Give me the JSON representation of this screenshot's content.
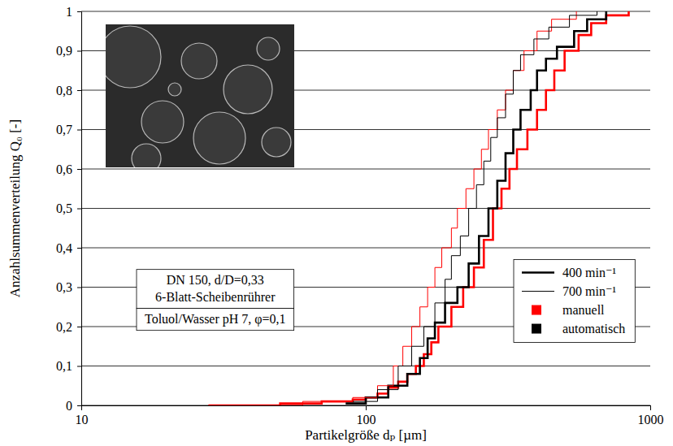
{
  "chart_data": {
    "type": "step",
    "x_label": "Partikelgröße dₚ [µm]",
    "y_label": "Anzahlsummenverteilung Q₀ [-]",
    "log": "x",
    "grid": true,
    "xlim": [
      10,
      1000
    ],
    "xticks": [
      10,
      100,
      1000
    ],
    "ylim": [
      0,
      1
    ],
    "yticks": [
      0,
      {
        "value": 0.1,
        "label": "0,1"
      },
      {
        "value": 0.2,
        "label": "0,2"
      },
      {
        "value": 0.3,
        "label": "0,3"
      },
      {
        "value": 0.4,
        "label": "0,4"
      },
      {
        "value": 0.5,
        "label": "0,5"
      },
      {
        "value": 0.6,
        "label": "0,6"
      },
      {
        "value": 0.7,
        "label": "0,7"
      },
      {
        "value": 0.8,
        "label": "0,8"
      },
      {
        "value": 0.9,
        "label": "0,9"
      },
      1
    ],
    "annotations": [
      "DN 150, d/D=0,33",
      "6-Blatt-Scheibenrührer",
      "Toluol/Wasser pH 7, φ=0,1"
    ],
    "legend": "right",
    "legend_items": [
      {
        "label": "400 min⁻¹",
        "line_style": "thick"
      },
      {
        "label": "700 min⁻¹",
        "line_style": "thin"
      },
      {
        "label": "manuell",
        "color": "#ff0000"
      },
      {
        "label": "automatisch",
        "color": "#000000"
      }
    ],
    "series": [
      {
        "color": "#ff0000",
        "line_style": "thick",
        "x": [
          28,
          50,
          70,
          90,
          100,
          110,
          120,
          130,
          140,
          150,
          160,
          170,
          180,
          200,
          220,
          240,
          260,
          280,
          300,
          320,
          340,
          370,
          400,
          430,
          460,
          500,
          560,
          620,
          700,
          840
        ],
        "values": [
          0,
          0.005,
          0.01,
          0.015,
          0.02,
          0.03,
          0.045,
          0.06,
          0.08,
          0.1,
          0.13,
          0.16,
          0.2,
          0.25,
          0.3,
          0.35,
          0.42,
          0.5,
          0.55,
          0.6,
          0.65,
          0.7,
          0.75,
          0.8,
          0.85,
          0.9,
          0.94,
          0.97,
          0.99,
          1
        ]
      },
      {
        "color": "#000000",
        "line_style": "thick",
        "x": [
          85,
          100,
          120,
          140,
          155,
          165,
          175,
          190,
          210,
          230,
          250,
          270,
          290,
          310,
          330,
          350,
          380,
          400,
          430,
          470,
          540,
          600,
          700
        ],
        "values": [
          0.005,
          0.02,
          0.05,
          0.08,
          0.12,
          0.17,
          0.21,
          0.26,
          0.3,
          0.36,
          0.43,
          0.5,
          0.57,
          0.64,
          0.7,
          0.75,
          0.8,
          0.85,
          0.88,
          0.91,
          0.95,
          0.98,
          1
        ]
      },
      {
        "color": "#ff0000",
        "line_style": "thin",
        "x": [
          28,
          60,
          90,
          110,
          125,
          135,
          145,
          155,
          165,
          175,
          185,
          200,
          210,
          225,
          240,
          255,
          270,
          290,
          310,
          330,
          360,
          400,
          450,
          550
        ],
        "values": [
          0,
          0.01,
          0.02,
          0.05,
          0.1,
          0.15,
          0.2,
          0.25,
          0.3,
          0.35,
          0.4,
          0.45,
          0.5,
          0.55,
          0.6,
          0.65,
          0.7,
          0.75,
          0.8,
          0.85,
          0.9,
          0.95,
          0.98,
          1
        ]
      },
      {
        "color": "#000000",
        "line_style": "thin",
        "x": [
          90,
          110,
          130,
          145,
          160,
          175,
          190,
          200,
          215,
          230,
          245,
          260,
          275,
          290,
          310,
          330,
          350,
          390,
          440,
          520,
          650
        ],
        "values": [
          0.01,
          0.04,
          0.1,
          0.15,
          0.2,
          0.26,
          0.32,
          0.38,
          0.43,
          0.5,
          0.56,
          0.62,
          0.68,
          0.73,
          0.79,
          0.85,
          0.89,
          0.93,
          0.96,
          0.99,
          1
        ]
      }
    ]
  }
}
